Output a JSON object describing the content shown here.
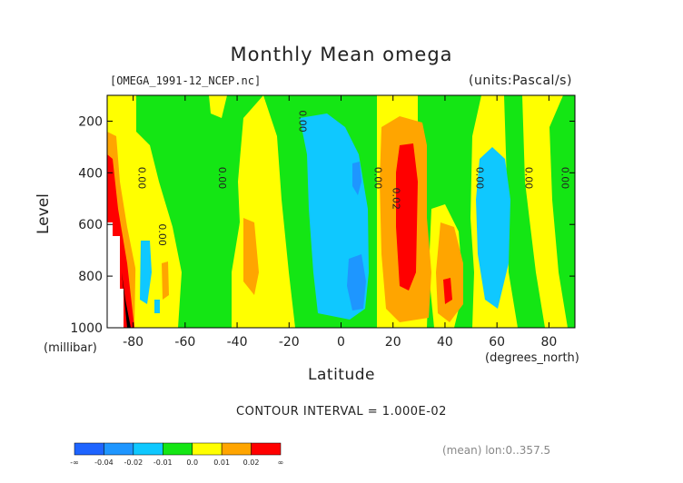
{
  "chart_data": {
    "type": "heatmap",
    "title": "Monthly Mean omega",
    "file_label": "[OMEGA_1991-12_NCEP.nc]",
    "units_label": "(units:Pascal/s)",
    "xlabel": "Latitude",
    "xunit": "(degrees_north)",
    "ylabel": "Level",
    "yunit": "(millibar)",
    "xlim": [
      -90,
      90
    ],
    "ylim": [
      1000,
      100
    ],
    "x_ticks": [
      -80,
      -60,
      -40,
      -20,
      0,
      20,
      40,
      60,
      80
    ],
    "y_ticks": [
      200,
      400,
      600,
      800,
      1000
    ],
    "contour_interval": "CONTOUR INTERVAL = 1.000E-02",
    "mean_note": "(mean) lon:0..357.5",
    "contour_labels": [
      {
        "text": "0.00",
        "x": -78,
        "y": 420
      },
      {
        "text": "0.00",
        "x": -70,
        "y": 640
      },
      {
        "text": "0.00",
        "x": -47,
        "y": 420
      },
      {
        "text": "0.00",
        "x": -16,
        "y": 200
      },
      {
        "text": "0.00",
        "x": 13,
        "y": 420
      },
      {
        "text": "0.02",
        "x": 20,
        "y": 500
      },
      {
        "text": "0.00",
        "x": 52,
        "y": 420
      },
      {
        "text": "0.00",
        "x": 71,
        "y": 420
      },
      {
        "text": "0.00",
        "x": 85,
        "y": 420
      }
    ],
    "legend": {
      "colors": [
        "#1e64ff",
        "#1e96ff",
        "#0fc8ff",
        "#14e614",
        "#ffff00",
        "#ffa500",
        "#ff0000"
      ],
      "labels": [
        "-∞",
        "-0.04",
        "-0.02",
        "-0.01",
        "0.0",
        "0.01",
        "0.02",
        "∞"
      ]
    }
  }
}
